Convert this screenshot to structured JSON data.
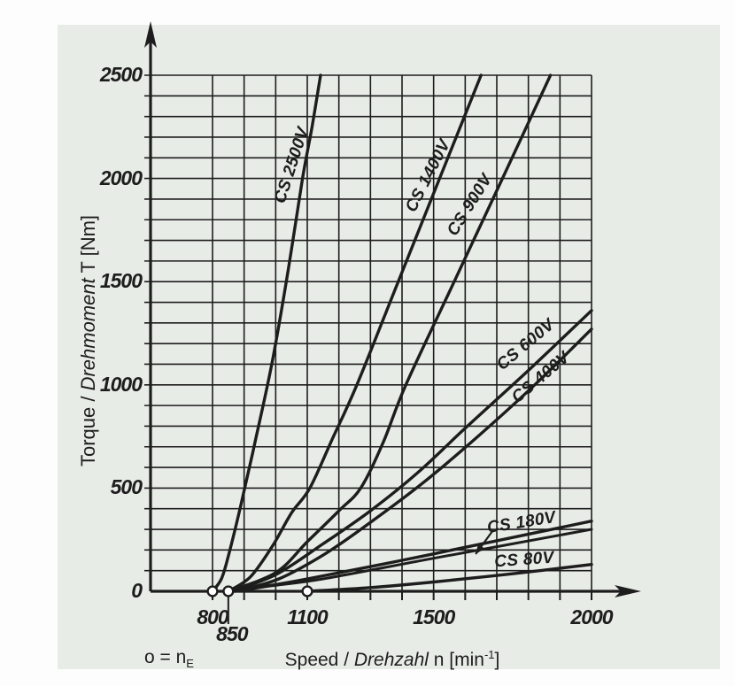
{
  "colors": {
    "ink": "#1d1d1d",
    "panel_bg": "#e8ece7",
    "marker_fill": "#ffffff"
  },
  "labels": {
    "y_title_parts": [
      "Torque / ",
      "Drehmoment",
      " T [Nm]"
    ],
    "x_title_parts": [
      "Speed / ",
      "Drehzahl",
      " n [min",
      "-1",
      "]"
    ],
    "ne_legend_parts": [
      "o = n",
      "E"
    ]
  },
  "chart_data": {
    "type": "line",
    "title": "",
    "xlabel": "Speed / Drehzahl n [min-1]",
    "ylabel": "Torque / Drehmoment T [Nm]",
    "xlim": [
      800,
      2000
    ],
    "ylim": [
      0,
      2500
    ],
    "grid": {
      "on": true,
      "x_step": 100,
      "y_step": 100
    },
    "x_ticks": [
      {
        "v": 800,
        "label": "800"
      },
      {
        "v": 850,
        "label": "850",
        "low": true
      },
      {
        "v": 1100,
        "label": "1100"
      },
      {
        "v": 1500,
        "label": "1500"
      },
      {
        "v": 2000,
        "label": "2000"
      }
    ],
    "y_ticks": [
      {
        "v": 0,
        "label": "0"
      },
      {
        "v": 500,
        "label": "500"
      },
      {
        "v": 1000,
        "label": "1000"
      },
      {
        "v": 1500,
        "label": "1500"
      },
      {
        "v": 2000,
        "label": "2000"
      },
      {
        "v": 2500,
        "label": "2500"
      }
    ],
    "ne_markers": {
      "meaning": "o = engagement speed nE",
      "x_values": [
        800,
        850,
        1100
      ]
    },
    "series": [
      {
        "label": "CS 2500V",
        "points": [
          [
            800,
            0
          ],
          [
            828,
            60
          ],
          [
            850,
            170
          ],
          [
            890,
            420
          ],
          [
            940,
            760
          ],
          [
            990,
            1120
          ],
          [
            1040,
            1560
          ],
          [
            1085,
            2000
          ],
          [
            1115,
            2250
          ],
          [
            1142,
            2500
          ]
        ]
      },
      {
        "label": "CS 1400V",
        "points": [
          [
            850,
            0
          ],
          [
            920,
            70
          ],
          [
            990,
            220
          ],
          [
            1050,
            380
          ],
          [
            1108,
            500
          ],
          [
            1180,
            740
          ],
          [
            1257,
            1000
          ],
          [
            1388,
            1500
          ],
          [
            1519,
            2000
          ],
          [
            1650,
            2500
          ]
        ]
      },
      {
        "label": "CS 900V",
        "points": [
          [
            850,
            0
          ],
          [
            1000,
            90
          ],
          [
            1100,
            240
          ],
          [
            1200,
            390
          ],
          [
            1269,
            500
          ],
          [
            1340,
            720
          ],
          [
            1412,
            1000
          ],
          [
            1565,
            1500
          ],
          [
            1718,
            2000
          ],
          [
            1870,
            2500
          ]
        ]
      },
      {
        "label": "CS 600V",
        "points": [
          [
            860,
            0
          ],
          [
            1000,
            80
          ],
          [
            1150,
            230
          ],
          [
            1300,
            390
          ],
          [
            1450,
            575
          ],
          [
            1600,
            790
          ],
          [
            1800,
            1070
          ],
          [
            2000,
            1360
          ]
        ]
      },
      {
        "label": "CS 400V",
        "points": [
          [
            872,
            0
          ],
          [
            1010,
            60
          ],
          [
            1160,
            185
          ],
          [
            1310,
            345
          ],
          [
            1470,
            530
          ],
          [
            1640,
            750
          ],
          [
            1820,
            1000
          ],
          [
            2000,
            1270
          ]
        ]
      },
      {
        "label": "CS 180V",
        "points": [
          [
            865,
            0
          ],
          [
            950,
            20
          ],
          [
            1100,
            60
          ],
          [
            1400,
            150
          ],
          [
            1700,
            245
          ],
          [
            2000,
            340
          ]
        ],
        "points_lower": [
          [
            882,
            0
          ],
          [
            980,
            25
          ],
          [
            1150,
            60
          ],
          [
            1500,
            160
          ],
          [
            2000,
            300
          ]
        ]
      },
      {
        "label": "CS 80V",
        "points": [
          [
            1100,
            0
          ],
          [
            1300,
            18
          ],
          [
            1500,
            45
          ],
          [
            1750,
            85
          ],
          [
            2000,
            130
          ]
        ]
      }
    ],
    "annotations": [
      {
        "type": "leader-arrow",
        "series": "CS 180V",
        "from_nT": [
          1686,
          291
        ],
        "to_nT": [
          1633,
          180
        ]
      }
    ]
  }
}
